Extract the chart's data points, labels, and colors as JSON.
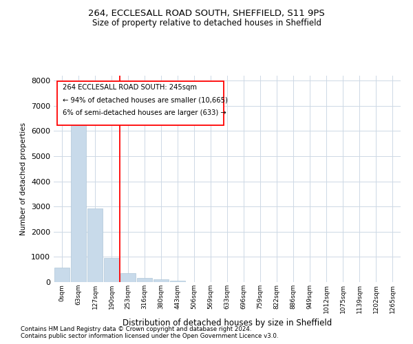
{
  "title1": "264, ECCLESALL ROAD SOUTH, SHEFFIELD, S11 9PS",
  "title2": "Size of property relative to detached houses in Sheffield",
  "xlabel": "Distribution of detached houses by size in Sheffield",
  "ylabel": "Number of detached properties",
  "footnote1": "Contains HM Land Registry data © Crown copyright and database right 2024.",
  "footnote2": "Contains public sector information licensed under the Open Government Licence v3.0.",
  "annotation_line1": "264 ECCLESALL ROAD SOUTH: 245sqm",
  "annotation_line2": "← 94% of detached houses are smaller (10,665)",
  "annotation_line3": "6% of semi-detached houses are larger (633) →",
  "bar_color": "#c8daea",
  "bar_edge_color": "#aec6d8",
  "grid_color": "#cdd8e5",
  "vline_color": "red",
  "annotation_box_color": "red",
  "categories": [
    "0sqm",
    "63sqm",
    "127sqm",
    "190sqm",
    "253sqm",
    "316sqm",
    "380sqm",
    "443sqm",
    "506sqm",
    "569sqm",
    "633sqm",
    "696sqm",
    "759sqm",
    "822sqm",
    "886sqm",
    "949sqm",
    "1012sqm",
    "1075sqm",
    "1139sqm",
    "1202sqm",
    "1265sqm"
  ],
  "values": [
    580,
    6380,
    2920,
    970,
    360,
    160,
    100,
    65,
    0,
    0,
    0,
    0,
    0,
    0,
    0,
    0,
    0,
    0,
    0,
    0,
    0
  ],
  "ylim": [
    0,
    8200
  ],
  "yticks": [
    0,
    1000,
    2000,
    3000,
    4000,
    5000,
    6000,
    7000,
    8000
  ],
  "vline_x": 3.48,
  "figsize": [
    6.0,
    5.0
  ],
  "dpi": 100
}
